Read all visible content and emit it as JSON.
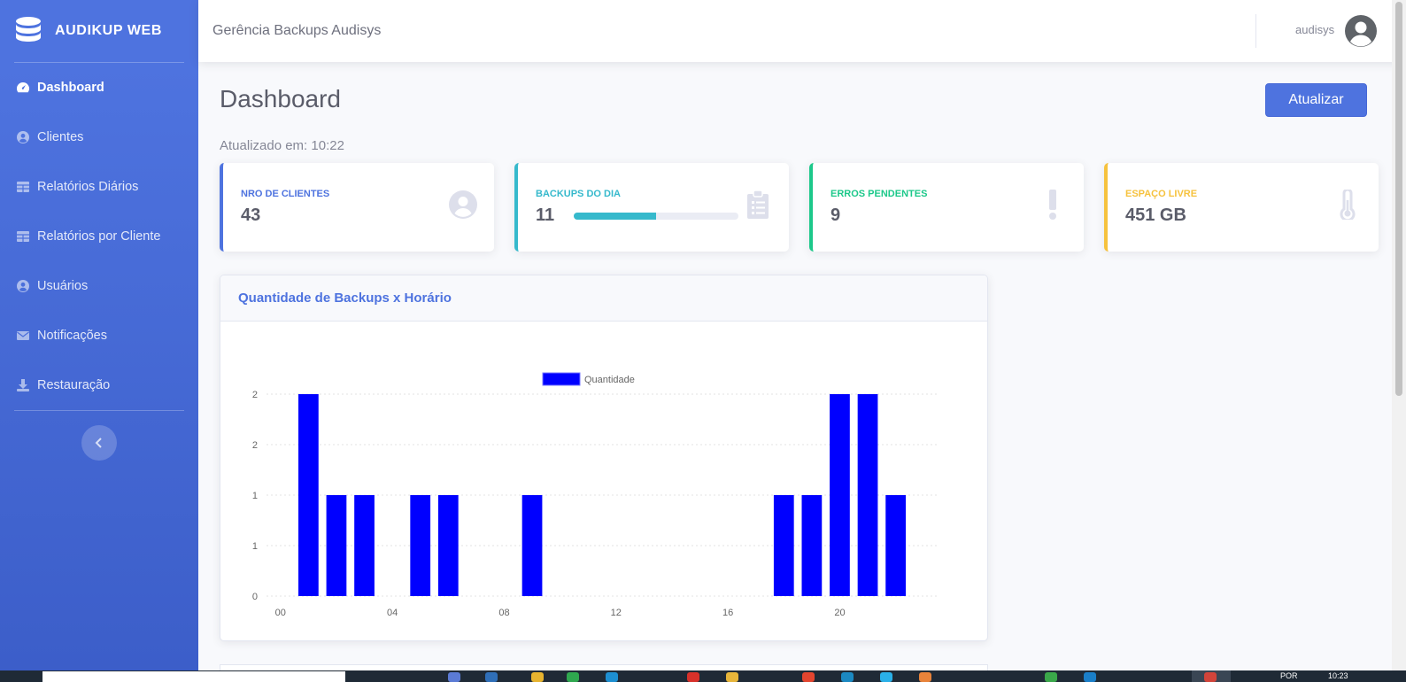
{
  "app": {
    "brand": "AUDIKUP WEB",
    "brand_icon": "database-icon",
    "topbar_title": "Gerência Backups Audisys",
    "user_name": "audisys",
    "user_icon": "user-avatar-icon"
  },
  "sidebar": {
    "items": [
      {
        "label": "Dashboard",
        "icon": "tachometer-icon",
        "active": true
      },
      {
        "label": "Clientes",
        "icon": "user-circle-icon",
        "active": false
      },
      {
        "label": "Relatórios Diários",
        "icon": "table-icon",
        "active": false
      },
      {
        "label": "Relatórios por Cliente",
        "icon": "table-icon",
        "active": false
      },
      {
        "label": "Usuários",
        "icon": "user-circle-icon",
        "active": false
      },
      {
        "label": "Notificações",
        "icon": "envelope-icon",
        "active": false
      },
      {
        "label": "Restauração",
        "icon": "download-icon",
        "active": false
      }
    ],
    "toggle_icon": "chevron-left-icon"
  },
  "main": {
    "page_title": "Dashboard",
    "refresh_label": "Atualizar",
    "updated_label": "Atualizado em: 10:22"
  },
  "cards": [
    {
      "label": "NRO DE CLIENTES",
      "value": "43",
      "color": "#4e73df",
      "icon": "user-circle-icon"
    },
    {
      "label": "BACKUPS DO DIA",
      "value": "11",
      "color": "#36b9cc",
      "icon": "clipboard-list-icon",
      "progress": 0.5
    },
    {
      "label": "ERROS PENDENTES",
      "value": "9",
      "color": "#1cc88a",
      "icon": "exclamation-icon"
    },
    {
      "label": "ESPAÇO LIVRE",
      "value": "451 GB",
      "color": "#f6c23e",
      "icon": "thermometer-icon"
    }
  ],
  "chart_card": {
    "title": "Quantidade de Backups x Horário"
  },
  "chart_data": {
    "type": "bar",
    "title": "",
    "xlabel": "",
    "ylabel": "",
    "x_tick_labels": [
      "00",
      "04",
      "08",
      "12",
      "16",
      "20"
    ],
    "y_tick_labels": [
      "0",
      "1",
      "1",
      "2",
      "2"
    ],
    "ylim": [
      0,
      2
    ],
    "grid": true,
    "legend_position": "top-center",
    "bar_color": "#0000ff",
    "series": [
      {
        "name": "Quantidade",
        "x": [
          1,
          2,
          3,
          5,
          6,
          9,
          18,
          19,
          20,
          21,
          22
        ],
        "values": [
          2,
          1,
          1,
          1,
          1,
          1,
          1,
          1,
          2,
          2,
          1
        ]
      }
    ]
  },
  "taskbar": {
    "lang": "POR",
    "time": "10:23"
  }
}
